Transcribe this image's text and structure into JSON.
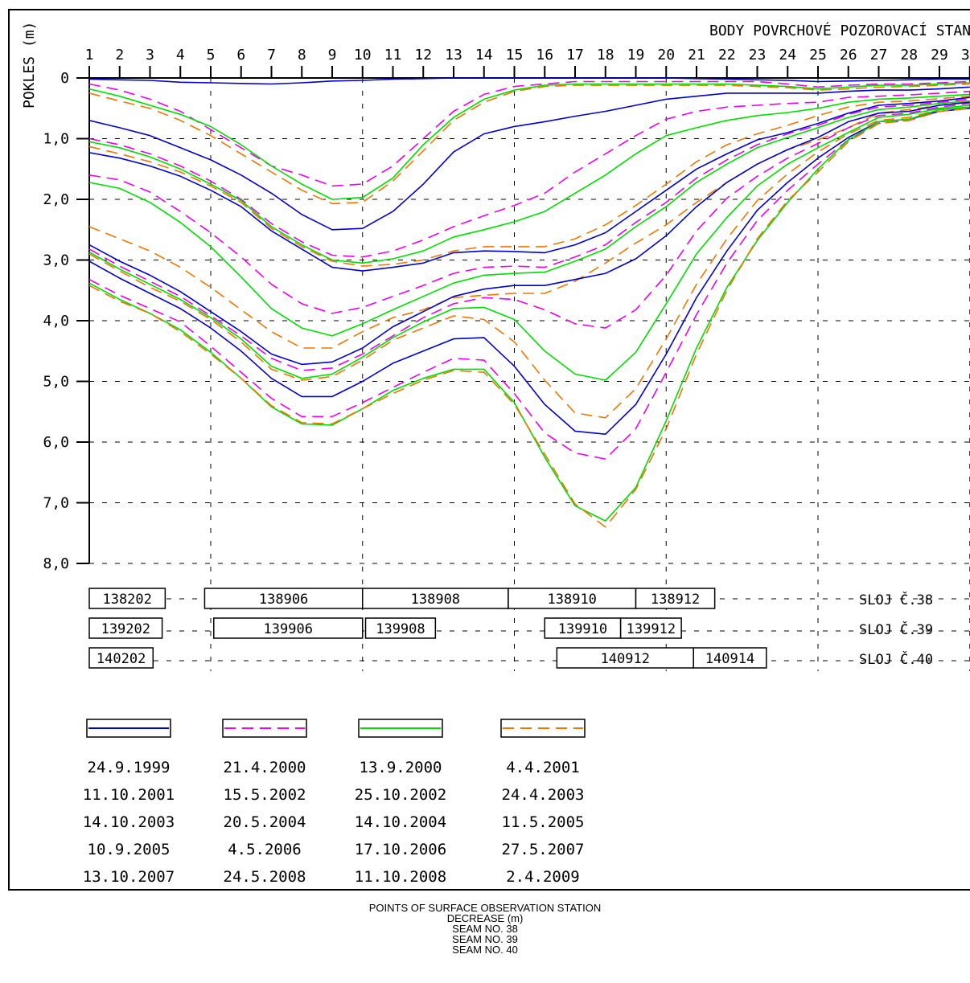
{
  "chart_data": {
    "type": "line",
    "title": "BODY POVRCHOVÉ POZOROVACÍ STANICE",
    "ylabel": "POKLES (m)",
    "x": [
      1,
      2,
      3,
      4,
      5,
      6,
      7,
      8,
      9,
      10,
      11,
      12,
      13,
      14,
      15,
      16,
      17,
      18,
      19,
      20,
      21,
      22,
      23,
      24,
      25,
      26,
      27,
      28,
      29,
      30
    ],
    "x_tick_labels": [
      "1",
      "2",
      "3",
      "4",
      "5",
      "6",
      "7",
      "8",
      "9",
      "10",
      "11",
      "12",
      "13",
      "14",
      "15",
      "16",
      "17",
      "18",
      "19",
      "20",
      "21",
      "22",
      "23",
      "24",
      "25",
      "26",
      "27",
      "28",
      "29",
      "30"
    ],
    "y_tick_labels": [
      "0",
      "1,0",
      "2,0",
      "3,0",
      "4,0",
      "5,0",
      "6,0",
      "7,0",
      "8,0"
    ],
    "ylim": [
      0,
      8
    ],
    "y_inverted": true,
    "grid": true,
    "series_styles": [
      {
        "color": "#0000cc",
        "dash": "solid"
      },
      {
        "color": "#ee00ee",
        "dash": "dashed"
      },
      {
        "color": "#00dd00",
        "dash": "solid"
      },
      {
        "color": "#ee7700",
        "dash": "dashed"
      }
    ],
    "series": [
      {
        "name": "24.9.1999",
        "style": 0,
        "values": [
          0.02,
          0.03,
          0.04,
          0.07,
          0.08,
          0.09,
          0.1,
          0.08,
          0.05,
          0.04,
          0.02,
          0.01,
          0,
          0,
          0,
          0,
          0,
          0,
          0,
          0,
          0.01,
          0.02,
          0.03,
          0.04,
          0.06,
          0.05,
          0.04,
          0.03,
          0.02,
          0.02
        ]
      },
      {
        "name": "21.4.2000",
        "style": 1,
        "values": [
          0.1,
          0.2,
          0.35,
          0.55,
          0.85,
          1.15,
          1.45,
          1.6,
          1.78,
          1.75,
          1.45,
          1,
          0.55,
          0.27,
          0.14,
          0.1,
          0.06,
          0.06,
          0.06,
          0.06,
          0.06,
          0.06,
          0.06,
          0.1,
          0.15,
          0.12,
          0.1,
          0.1,
          0.08,
          0.06
        ]
      },
      {
        "name": "13.9.2000",
        "style": 2,
        "values": [
          0.18,
          0.3,
          0.45,
          0.6,
          0.8,
          1.1,
          1.45,
          1.75,
          2,
          1.97,
          1.65,
          1.1,
          0.65,
          0.35,
          0.2,
          0.12,
          0.1,
          0.1,
          0.1,
          0.1,
          0.1,
          0.1,
          0.12,
          0.14,
          0.18,
          0.15,
          0.12,
          0.12,
          0.1,
          0.08
        ]
      },
      {
        "name": "4.4.2001",
        "style": 3,
        "values": [
          0.25,
          0.38,
          0.5,
          0.7,
          0.95,
          1.25,
          1.55,
          1.85,
          2.07,
          2.05,
          1.7,
          1.2,
          0.7,
          0.4,
          0.22,
          0.14,
          0.12,
          0.12,
          0.12,
          0.12,
          0.12,
          0.12,
          0.14,
          0.16,
          0.2,
          0.18,
          0.15,
          0.14,
          0.12,
          0.1
        ]
      },
      {
        "name": "11.10.2001",
        "style": 0,
        "values": [
          0.7,
          0.82,
          0.95,
          1.15,
          1.35,
          1.6,
          1.9,
          2.25,
          2.5,
          2.48,
          2.2,
          1.75,
          1.22,
          0.92,
          0.8,
          0.72,
          0.63,
          0.55,
          0.45,
          0.35,
          0.3,
          0.25,
          0.25,
          0.25,
          0.25,
          0.22,
          0.2,
          0.2,
          0.18,
          0.15
        ]
      },
      {
        "name": "15.5.2002",
        "style": 1,
        "values": [
          1,
          1.1,
          1.25,
          1.45,
          1.7,
          2,
          2.4,
          2.7,
          2.92,
          2.95,
          2.85,
          2.67,
          2.45,
          2.27,
          2.1,
          1.9,
          1.55,
          1.25,
          0.95,
          0.68,
          0.55,
          0.48,
          0.45,
          0.42,
          0.4,
          0.32,
          0.3,
          0.28,
          0.25,
          0.22
        ]
      },
      {
        "name": "25.10.2002",
        "style": 2,
        "values": [
          1.05,
          1.15,
          1.3,
          1.5,
          1.75,
          2.02,
          2.45,
          2.75,
          3,
          3.05,
          2.98,
          2.85,
          2.62,
          2.5,
          2.37,
          2.2,
          1.9,
          1.6,
          1.25,
          0.95,
          0.82,
          0.7,
          0.62,
          0.57,
          0.5,
          0.4,
          0.35,
          0.33,
          0.3,
          0.27
        ]
      },
      {
        "name": "24.4.2003",
        "style": 3,
        "values": [
          1.13,
          1.25,
          1.38,
          1.55,
          1.78,
          2.05,
          2.48,
          2.78,
          3.02,
          3.1,
          3.07,
          3,
          2.85,
          2.78,
          2.78,
          2.78,
          2.65,
          2.42,
          2.1,
          1.75,
          1.38,
          1.1,
          0.92,
          0.78,
          0.62,
          0.48,
          0.4,
          0.38,
          0.34,
          0.3
        ]
      },
      {
        "name": "14.10.2003",
        "style": 0,
        "values": [
          1.23,
          1.32,
          1.45,
          1.62,
          1.85,
          2.12,
          2.52,
          2.82,
          3.12,
          3.18,
          3.12,
          3.05,
          2.88,
          2.85,
          2.86,
          2.88,
          2.75,
          2.55,
          2.2,
          1.85,
          1.5,
          1.25,
          1.02,
          0.9,
          0.75,
          0.58,
          0.45,
          0.42,
          0.38,
          0.32
        ]
      },
      {
        "name": "20.5.2004",
        "style": 1,
        "values": [
          1.6,
          1.68,
          1.88,
          2.2,
          2.55,
          2.95,
          3.4,
          3.72,
          3.88,
          3.78,
          3.6,
          3.42,
          3.22,
          3.12,
          3.1,
          3.12,
          2.95,
          2.75,
          2.38,
          2.05,
          1.65,
          1.35,
          1.1,
          0.92,
          0.78,
          0.6,
          0.48,
          0.45,
          0.4,
          0.35
        ]
      },
      {
        "name": "14.10.2004",
        "style": 2,
        "values": [
          1.72,
          1.82,
          2.05,
          2.38,
          2.78,
          3.28,
          3.8,
          4.12,
          4.25,
          4.05,
          3.82,
          3.6,
          3.38,
          3.25,
          3.22,
          3.2,
          3.02,
          2.82,
          2.45,
          2.12,
          1.72,
          1.42,
          1.15,
          0.98,
          0.82,
          0.65,
          0.52,
          0.48,
          0.42,
          0.38
        ]
      },
      {
        "name": "11.5.2005",
        "style": 3,
        "values": [
          2.45,
          2.65,
          2.85,
          3.12,
          3.45,
          3.82,
          4.18,
          4.45,
          4.45,
          4.18,
          3.95,
          3.82,
          3.62,
          3.58,
          3.55,
          3.55,
          3.35,
          3.05,
          2.72,
          2.42,
          2.05,
          1.72,
          1.42,
          1.18,
          1.02,
          0.82,
          0.58,
          0.52,
          0.45,
          0.38
        ]
      },
      {
        "name": "10.9.2005",
        "style": 0,
        "values": [
          2.75,
          3.02,
          3.25,
          3.52,
          3.85,
          4.18,
          4.55,
          4.72,
          4.68,
          4.45,
          4.1,
          3.85,
          3.6,
          3.48,
          3.42,
          3.42,
          3.32,
          3.22,
          2.98,
          2.6,
          2.12,
          1.72,
          1.42,
          1.18,
          0.98,
          0.72,
          0.58,
          0.55,
          0.45,
          0.4
        ]
      },
      {
        "name": "4.5.2006",
        "style": 1,
        "values": [
          2.82,
          3.1,
          3.35,
          3.6,
          3.92,
          4.25,
          4.62,
          4.82,
          4.78,
          4.55,
          4.25,
          3.95,
          3.72,
          3.62,
          3.65,
          3.82,
          4.05,
          4.12,
          3.82,
          3.25,
          2.52,
          1.98,
          1.62,
          1.32,
          1.08,
          0.82,
          0.62,
          0.58,
          0.48,
          0.42
        ]
      },
      {
        "name": "17.10.2006",
        "style": 2,
        "values": [
          2.87,
          3.15,
          3.4,
          3.65,
          3.95,
          4.3,
          4.75,
          4.95,
          4.88,
          4.6,
          4.28,
          4.02,
          3.8,
          3.78,
          3.98,
          4.5,
          4.88,
          4.98,
          4.52,
          3.72,
          2.9,
          2.3,
          1.78,
          1.42,
          1.15,
          0.9,
          0.65,
          0.6,
          0.5,
          0.45
        ]
      },
      {
        "name": "27.5.2007",
        "style": 3,
        "values": [
          2.9,
          3.18,
          3.45,
          3.68,
          3.98,
          4.35,
          4.8,
          4.98,
          4.92,
          4.65,
          4.32,
          4.12,
          3.92,
          3.98,
          4.35,
          4.98,
          5.52,
          5.6,
          5.12,
          4.3,
          3.4,
          2.65,
          2.02,
          1.58,
          1.22,
          0.92,
          0.7,
          0.65,
          0.52,
          0.48
        ]
      },
      {
        "name": "13.10.2007",
        "style": 0,
        "values": [
          3.02,
          3.3,
          3.55,
          3.8,
          4.12,
          4.5,
          4.95,
          5.25,
          5.25,
          5,
          4.7,
          4.5,
          4.3,
          4.28,
          4.75,
          5.38,
          5.82,
          5.87,
          5.38,
          4.55,
          3.62,
          2.85,
          2.18,
          1.72,
          1.32,
          0.98,
          0.72,
          0.68,
          0.55,
          0.5
        ]
      },
      {
        "name": "24.5.2008",
        "style": 1,
        "values": [
          3.32,
          3.58,
          3.8,
          4.02,
          4.42,
          4.85,
          5.28,
          5.58,
          5.58,
          5.35,
          5.1,
          4.85,
          4.62,
          4.65,
          5.2,
          5.85,
          6.18,
          6.28,
          5.78,
          4.85,
          3.9,
          3.05,
          2.35,
          1.85,
          1.42,
          1.02,
          0.75,
          0.7,
          0.55,
          0.5
        ]
      },
      {
        "name": "11.10.2008",
        "style": 2,
        "values": [
          3.38,
          3.65,
          3.88,
          4.15,
          4.52,
          4.95,
          5.42,
          5.7,
          5.72,
          5.45,
          5.15,
          4.95,
          4.8,
          4.8,
          5.35,
          6.25,
          7.05,
          7.3,
          6.75,
          5.65,
          4.45,
          3.45,
          2.68,
          2.05,
          1.5,
          1.02,
          0.72,
          0.68,
          0.52,
          0.48
        ]
      },
      {
        "name": "2.4.2009",
        "style": 3,
        "values": [
          3.42,
          3.68,
          3.88,
          4.18,
          4.55,
          4.95,
          5.4,
          5.68,
          5.7,
          5.45,
          5.2,
          4.98,
          4.82,
          4.85,
          5.38,
          6.2,
          7.02,
          7.4,
          6.78,
          5.78,
          4.55,
          3.5,
          2.65,
          2.02,
          1.55,
          1.05,
          0.75,
          0.7,
          0.55,
          0.5
        ]
      }
    ],
    "legend_rows": [
      [
        "24.9.1999",
        "21.4.2000",
        "13.9.2000",
        "4.4.2001"
      ],
      [
        "11.10.2001",
        "15.5.2002",
        "25.10.2002",
        "24.4.2003"
      ],
      [
        "14.10.2003",
        "20.5.2004",
        "14.10.2004",
        "11.5.2005"
      ],
      [
        "10.9.2005",
        "4.5.2006",
        "17.10.2006",
        "27.5.2007"
      ],
      [
        "13.10.2007",
        "24.5.2008",
        "11.10.2008",
        "2.4.2009"
      ]
    ],
    "seam_rows": [
      {
        "label": "SLOJ Č.38",
        "panels": [
          {
            "id": "138202",
            "from": 1,
            "to": 3.5
          },
          {
            "id": "138906",
            "from": 4.8,
            "to": 10
          },
          {
            "id": "138908",
            "from": 10,
            "to": 14.8
          },
          {
            "id": "138910",
            "from": 14.8,
            "to": 19
          },
          {
            "id": "138912",
            "from": 19,
            "to": 21.6
          }
        ]
      },
      {
        "label": "SLOJ Č.39",
        "panels": [
          {
            "id": "139202",
            "from": 1,
            "to": 3.4
          },
          {
            "id": "139906",
            "from": 5.1,
            "to": 10
          },
          {
            "id": "139908",
            "from": 10.1,
            "to": 12.4
          },
          {
            "id": "139910",
            "from": 16,
            "to": 18.5
          },
          {
            "id": "139912",
            "from": 18.5,
            "to": 20.5
          }
        ]
      },
      {
        "label": "SLOJ Č.40",
        "panels": [
          {
            "id": "140202",
            "from": 1,
            "to": 3.1
          },
          {
            "id": "140912",
            "from": 16.4,
            "to": 20.9
          },
          {
            "id": "140914",
            "from": 20.9,
            "to": 23.3
          }
        ]
      }
    ]
  },
  "translation": {
    "lines": [
      "POINTS OF SURFACE OBSERVATION STATION",
      "DECREASE (m)",
      "SEAM NO. 38",
      "SEAM NO. 39",
      "SEAM NO. 40"
    ]
  }
}
